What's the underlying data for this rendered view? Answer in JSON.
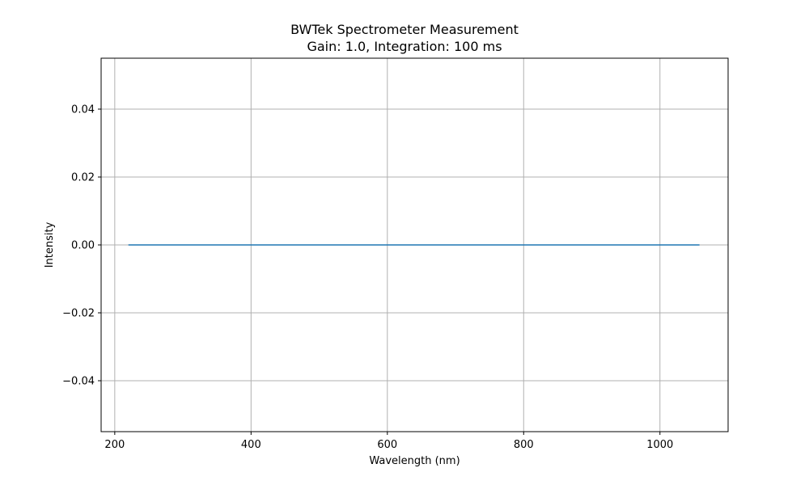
{
  "chart_data": {
    "type": "line",
    "title": "BWTek Spectrometer Measurement",
    "subtitle": "Gain: 1.0, Integration: 100 ms",
    "xlabel": "Wavelength (nm)",
    "ylabel": "Intensity",
    "xlim": [
      180,
      1100
    ],
    "ylim": [
      -0.055,
      0.055
    ],
    "xticks": [
      200,
      400,
      600,
      800,
      1000
    ],
    "xtick_labels": [
      "200",
      "400",
      "600",
      "800",
      "1000"
    ],
    "yticks": [
      -0.04,
      -0.02,
      0.0,
      0.02,
      0.04
    ],
    "ytick_labels": [
      "−0.04",
      "−0.02",
      "0.00",
      "0.02",
      "0.04"
    ],
    "grid": true,
    "series": [
      {
        "color": "#1f77b4",
        "x": [
          220,
          1058
        ],
        "y": [
          0.0,
          0.0
        ]
      }
    ]
  }
}
